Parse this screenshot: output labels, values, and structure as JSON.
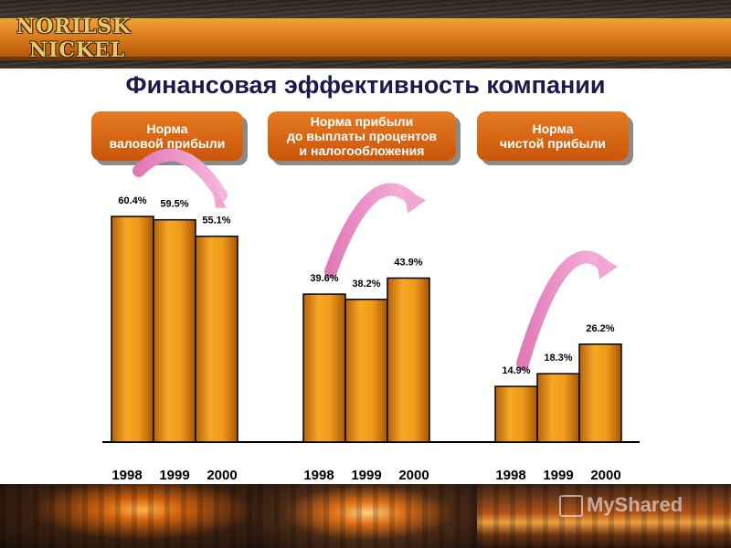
{
  "title": "Финансовая эффективность компании",
  "logo": {
    "line1": "NORILSK",
    "line2": "NICKEL"
  },
  "watermark": "MyShared",
  "colors": {
    "bar_fill": "#f09a1a",
    "bar_dark": "#b3620a",
    "group_box": "#d8661a",
    "arrow": "#e88fc3",
    "title": "#1a1a4e"
  },
  "chart_data": {
    "type": "bar",
    "groups": [
      {
        "label": "Норма\nваловой прибыли",
        "categories": [
          "1998",
          "1999",
          "2000"
        ],
        "values": [
          60.4,
          59.5,
          55.1
        ],
        "value_labels": [
          "60.4%",
          "59.5%",
          "55.1%"
        ]
      },
      {
        "label": "Норма прибыли\nдо выплаты процентов\nи налогообложения",
        "categories": [
          "1998",
          "1999",
          "2000"
        ],
        "values": [
          39.6,
          38.2,
          43.9
        ],
        "value_labels": [
          "39.6%",
          "38.2%",
          "43.9%"
        ]
      },
      {
        "label": "Норма\nчистой прибыли",
        "categories": [
          "1998",
          "1999",
          "2000"
        ],
        "values": [
          14.9,
          18.3,
          26.2
        ],
        "value_labels": [
          "14.9%",
          "18.3%",
          "26.2%"
        ]
      }
    ],
    "ylim": [
      0,
      60.4
    ],
    "grid": false
  }
}
